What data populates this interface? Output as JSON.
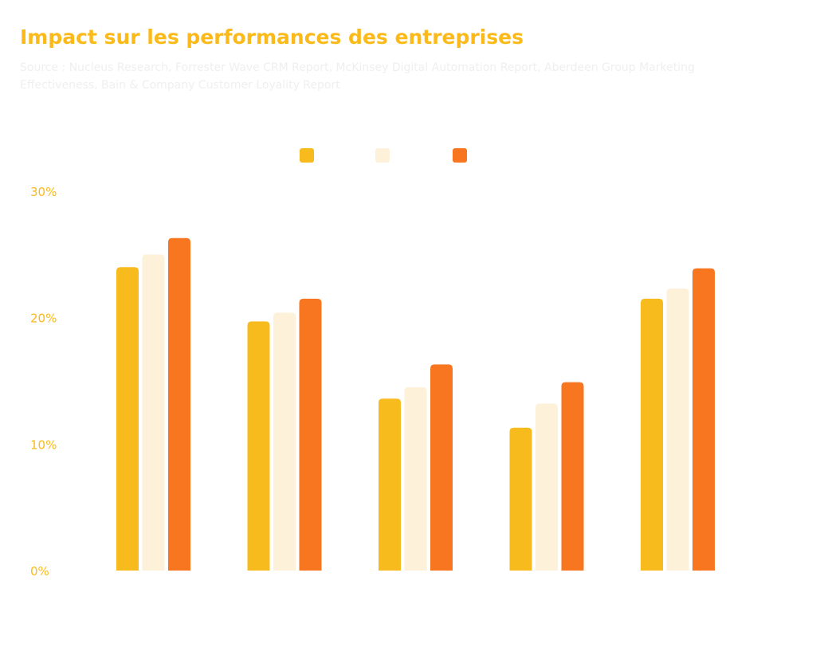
{
  "header": {
    "title": "Impact sur les performances des entreprises",
    "subtitle": "Source : Nucleus Research, Forrester Wave CRM Report, McKinsey Digital Automation Report, Aberdeen Group Marketing Effectiveness, Bain & Company Customer Loyality Report"
  },
  "colors": {
    "title": "#FBBA1A",
    "subtitle": "#EFEFEF",
    "tick_label": "#FBBA1A",
    "series": [
      "#F8BB1E",
      "#FEF1D9",
      "#F8761F"
    ]
  },
  "chart_data": {
    "type": "bar",
    "title": "",
    "xlabel": "",
    "ylabel": "",
    "ylim": [
      0,
      30
    ],
    "yticks": [
      0,
      10,
      20,
      30
    ],
    "ytick_labels": [
      "0%",
      "10%",
      "20%",
      "30%"
    ],
    "grid": false,
    "legend": "top-center",
    "categories": [
      "",
      "",
      "",
      "",
      ""
    ],
    "series": [
      {
        "values": [
          24,
          19.7,
          13.6,
          11.3,
          21.5
        ]
      },
      {
        "values": [
          25,
          20.4,
          14.5,
          13.2,
          22.3
        ]
      },
      {
        "values": [
          26.3,
          21.5,
          16.3,
          14.9,
          23.9
        ]
      }
    ]
  }
}
